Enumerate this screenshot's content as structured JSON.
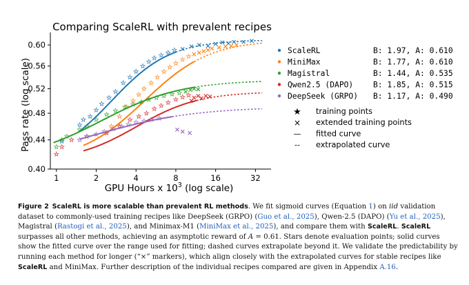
{
  "chart_data": {
    "type": "scatter",
    "title": "Comparing ScaleRL with prevalent recipes",
    "xlabel": "GPU Hours x 10³ (log scale)",
    "ylabel": "Pass rate (log scale)",
    "xscale": "log",
    "yscale": "log",
    "xlim": [
      0.9,
      42
    ],
    "ylim": [
      0.4,
      0.625
    ],
    "xticks": [
      1,
      2,
      4,
      8,
      16,
      32
    ],
    "yticks": [
      0.4,
      0.44,
      0.48,
      0.52,
      0.56,
      0.6
    ],
    "ytick_labels": [
      "0.40",
      "0.44",
      "0.48",
      "0.52",
      "0.56",
      "0.60"
    ],
    "series": [
      {
        "name": "ScaleRL",
        "color": "#1f77b4",
        "B": 1.97,
        "A": 0.61,
        "B_label": "B: 1.97, A: 0.610",
        "fit_range": [
          1.5,
          8
        ],
        "extrap_range": [
          8,
          36
        ],
        "training_points": [
          [
            1.1,
            0.438
          ],
          [
            1.5,
            0.462
          ],
          [
            1.6,
            0.47
          ],
          [
            1.8,
            0.475
          ],
          [
            2.0,
            0.485
          ],
          [
            2.2,
            0.495
          ],
          [
            2.5,
            0.505
          ],
          [
            2.8,
            0.515
          ],
          [
            3.2,
            0.53
          ],
          [
            3.6,
            0.54
          ],
          [
            4.0,
            0.55
          ],
          [
            4.5,
            0.56
          ],
          [
            5.0,
            0.568
          ],
          [
            5.5,
            0.575
          ],
          [
            6.2,
            0.58
          ],
          [
            7.0,
            0.585
          ],
          [
            7.8,
            0.59
          ]
        ],
        "extended_points": [
          [
            9,
            0.592
          ],
          [
            10.5,
            0.597
          ],
          [
            12,
            0.6
          ],
          [
            14,
            0.598
          ],
          [
            16,
            0.602
          ],
          [
            18,
            0.605
          ],
          [
            20,
            0.603
          ],
          [
            22,
            0.606
          ],
          [
            26,
            0.606
          ],
          [
            30,
            0.608
          ]
        ]
      },
      {
        "name": "MiniMax",
        "color": "#ff7f0e",
        "B": 1.77,
        "A": 0.61,
        "B_label": "B: 1.77, A: 0.610",
        "fit_range": [
          1.6,
          11
        ],
        "extrap_range": [
          11,
          36
        ],
        "training_points": [
          [
            2.6,
            0.46
          ],
          [
            3.0,
            0.475
          ],
          [
            3.4,
            0.49
          ],
          [
            3.8,
            0.5
          ],
          [
            4.2,
            0.51
          ],
          [
            4.6,
            0.52
          ],
          [
            5.2,
            0.53
          ],
          [
            5.8,
            0.54
          ],
          [
            6.5,
            0.55
          ],
          [
            7.2,
            0.558
          ],
          [
            8.0,
            0.565
          ],
          [
            9.0,
            0.572
          ],
          [
            10,
            0.578
          ]
        ],
        "extended_points": [
          [
            11,
            0.582
          ],
          [
            12,
            0.585
          ],
          [
            13,
            0.588
          ],
          [
            14,
            0.59
          ],
          [
            15,
            0.593
          ],
          [
            17,
            0.595
          ],
          [
            19,
            0.597
          ],
          [
            21,
            0.598
          ],
          [
            23,
            0.6
          ]
        ]
      },
      {
        "name": "Magistral",
        "color": "#2ca02c",
        "B": 1.44,
        "A": 0.535,
        "B_label": "B: 1.44, A: 0.535",
        "fit_range": [
          0.95,
          11
        ],
        "extrap_range": [
          11,
          36
        ],
        "training_points": [
          [
            1.0,
            0.43
          ],
          [
            1.1,
            0.44
          ],
          [
            1.2,
            0.445
          ],
          [
            1.5,
            0.455
          ],
          [
            1.7,
            0.46
          ],
          [
            2.0,
            0.47
          ],
          [
            2.4,
            0.478
          ],
          [
            2.8,
            0.484
          ],
          [
            3.3,
            0.49
          ],
          [
            3.8,
            0.494
          ],
          [
            4.4,
            0.498
          ],
          [
            5.0,
            0.502
          ],
          [
            5.7,
            0.505
          ],
          [
            6.5,
            0.508
          ],
          [
            7.5,
            0.511
          ],
          [
            8.5,
            0.513
          ]
        ],
        "extended_points": [
          [
            9.5,
            0.515
          ],
          [
            10.3,
            0.518
          ],
          [
            11,
            0.52
          ],
          [
            11.8,
            0.519
          ]
        ]
      },
      {
        "name": "Qwen2.5 (DAPO)",
        "color": "#d62728",
        "B": 1.85,
        "A": 0.515,
        "B_label": "B: 1.85, A: 0.515",
        "fit_range": [
          1.6,
          11.5
        ],
        "extrap_range": [
          11.5,
          36
        ],
        "training_points": [
          [
            1.0,
            0.42
          ],
          [
            1.1,
            0.43
          ],
          [
            1.3,
            0.44
          ],
          [
            1.7,
            0.445
          ],
          [
            2.4,
            0.45
          ],
          [
            3.0,
            0.46
          ],
          [
            3.6,
            0.47
          ],
          [
            4.2,
            0.475
          ],
          [
            4.8,
            0.48
          ],
          [
            5.5,
            0.487
          ],
          [
            6.2,
            0.492
          ],
          [
            7.0,
            0.497
          ],
          [
            8.0,
            0.502
          ],
          [
            9.0,
            0.506
          ],
          [
            10,
            0.509
          ]
        ],
        "extended_points": [
          [
            10.5,
            0.5
          ],
          [
            11,
            0.505
          ],
          [
            11.8,
            0.508
          ],
          [
            12.5,
            0.504
          ],
          [
            13.5,
            0.508
          ],
          [
            14.5,
            0.507
          ]
        ]
      },
      {
        "name": "DeepSeek (GRPO)",
        "color": "#9467bd",
        "B": 1.17,
        "A": 0.49,
        "B_label": "B: 1.17, A: 0.490",
        "fit_range": [
          1.5,
          7.5
        ],
        "extrap_range": [
          7.5,
          36
        ],
        "training_points": [
          [
            1.5,
            0.44
          ],
          [
            1.7,
            0.445
          ],
          [
            2.0,
            0.448
          ],
          [
            2.3,
            0.452
          ],
          [
            2.7,
            0.456
          ],
          [
            3.1,
            0.46
          ],
          [
            3.5,
            0.463
          ],
          [
            4.0,
            0.466
          ],
          [
            4.6,
            0.468
          ],
          [
            5.2,
            0.47
          ],
          [
            6.0,
            0.472
          ]
        ],
        "extended_points": [
          [
            8.2,
            0.455
          ],
          [
            9.0,
            0.452
          ],
          [
            10.2,
            0.45
          ]
        ]
      }
    ],
    "legend_placement": "right",
    "marker_legend": [
      {
        "symbol": "★",
        "label": "training points"
      },
      {
        "symbol": "×",
        "label": "extended training points"
      },
      {
        "symbol": "—",
        "label": "fitted curve"
      },
      {
        "symbol": "--",
        "label": "extrapolated curve"
      }
    ]
  },
  "caption": {
    "figure_label": "Figure 2",
    "lead": "ScaleRL is more scalable than prevalent RL methods",
    "parts": [
      {
        "t": ". We fit sigmoid curves (Equation "
      },
      {
        "t": "1",
        "cite": true
      },
      {
        "t": ") on "
      },
      {
        "t": "iid",
        "italic": true
      },
      {
        "t": " validation dataset to commonly-used training recipes like DeepSeek (GRPO) ("
      },
      {
        "t": "Guo et al., 2025",
        "cite": true
      },
      {
        "t": "), Qwen-2.5 (DAPO) ("
      },
      {
        "t": "Yu et al., 2025",
        "cite": true
      },
      {
        "t": "), Magistral ("
      },
      {
        "t": "Rastogi et al., 2025",
        "cite": true
      },
      {
        "t": "), and Minimax-M1 ("
      },
      {
        "t": "MiniMax et al., 2025",
        "cite": true
      },
      {
        "t": "), and compare them with "
      },
      {
        "t": "ScaleRL",
        "sans": true
      },
      {
        "t": ". "
      },
      {
        "t": "ScaleRL",
        "sans": true
      },
      {
        "t": " surpasses all other methods, achieving an asymptotic reward of "
      },
      {
        "t": "A",
        "italic": true
      },
      {
        "t": " = 0.61. Stars denote evaluation points; solid curves show the fitted curve over the range used for fitting; dashed curves extrapolate beyond it. We validate the predictability by running each method for longer (“×” markers), which align closely with the extrapolated curves for stable recipes like "
      },
      {
        "t": "ScaleRL",
        "sans": true
      },
      {
        "t": " and MiniMax. Further description of the individual recipes compared are given in Appendix "
      },
      {
        "t": "A.16",
        "cite": true
      },
      {
        "t": "."
      }
    ]
  }
}
